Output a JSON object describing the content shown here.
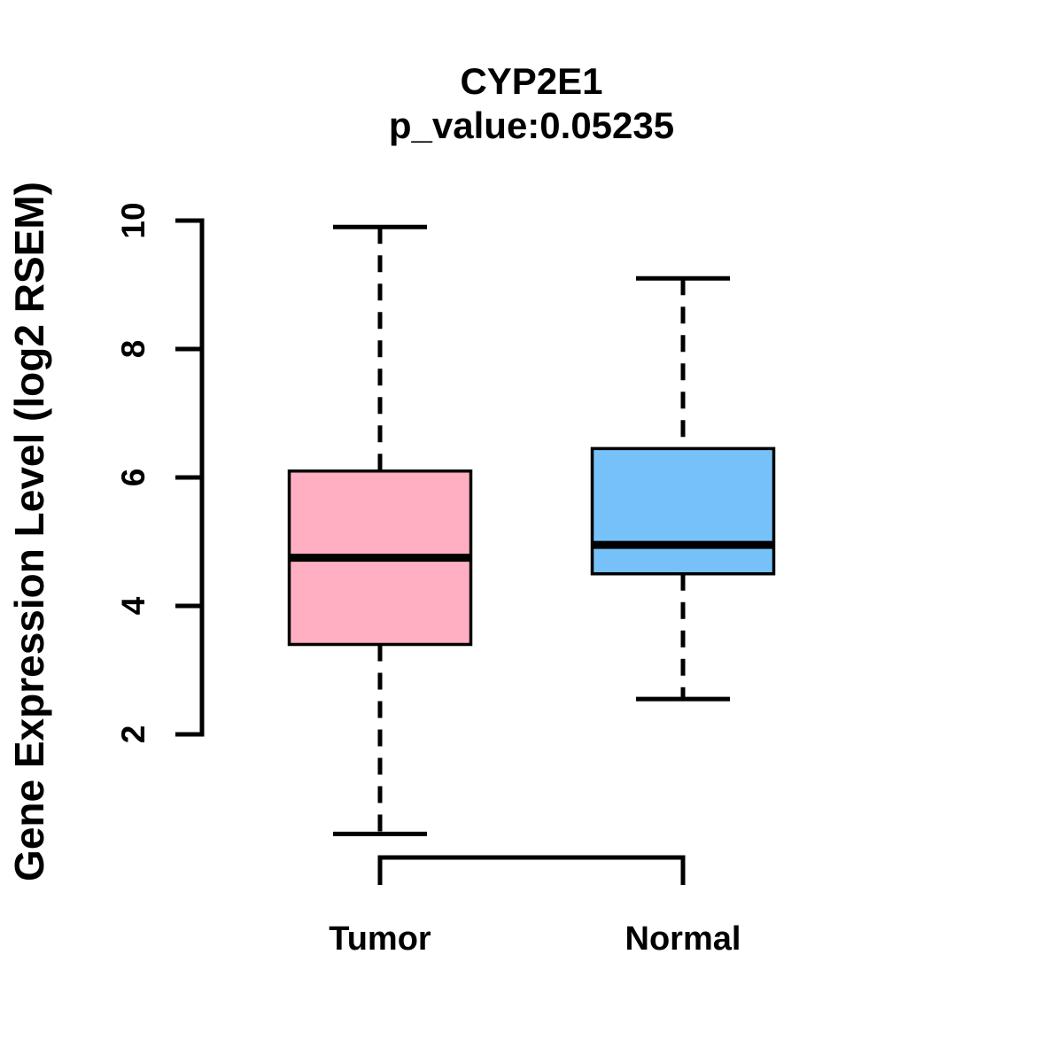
{
  "chart_data": {
    "type": "boxplot",
    "title": "CYP2E1",
    "subtitle": "p_value:0.05235",
    "ylabel": "Gene Expression Level (log2 RSEM)",
    "xlabel": "",
    "categories": [
      "Tumor",
      "Normal"
    ],
    "y_ticks": [
      2,
      4,
      6,
      8,
      10
    ],
    "y_axis_range": [
      2,
      10
    ],
    "grid": "off",
    "legend": "none",
    "series": [
      {
        "name": "Tumor",
        "color": "#FFAFC1",
        "whisker_low": 0.45,
        "q1": 3.4,
        "median": 4.75,
        "q3": 6.1,
        "whisker_high": 9.9
      },
      {
        "name": "Normal",
        "color": "#77C1F9",
        "whisker_low": 2.55,
        "q1": 4.5,
        "median": 4.95,
        "q3": 6.45,
        "whisker_high": 9.1
      }
    ],
    "colors": {
      "stroke": "#000000",
      "background": "#ffffff",
      "tumor_fill": "#FFAFC1",
      "normal_fill": "#77C1F9"
    }
  }
}
